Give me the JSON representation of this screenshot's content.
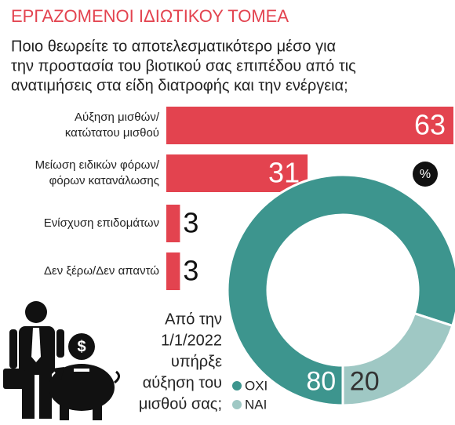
{
  "chart_data": [
    {
      "type": "bar",
      "title": "ΕΡΓΑΖΟΜΕΝΟΙ ΙΔΙΩΤΙΚΟΥ ΤΟΜΕΑ",
      "subtitle": [
        "Ποιο θεωρείτε το αποτελεσματικότερο μέσο για",
        "την προστασία του βιοτικού σας επιπέδου από τις",
        "ανατιμήσεις στα είδη διατροφής και την ενέργεια;"
      ],
      "categories": [
        [
          "Αύξηση μισθών/",
          "κατώτατου μισθού"
        ],
        [
          "Μείωση ειδικών φόρων/",
          "φόρων κατανάλωσης"
        ],
        [
          "Ενίσχυση επιδομάτων"
        ],
        [
          "Δεν ξέρω/Δεν απαντώ"
        ]
      ],
      "values": [
        63,
        31,
        3,
        3
      ],
      "color": "#e3434f",
      "unit_badge": "%"
    },
    {
      "type": "pie",
      "title": [
        "Από την",
        "1/1/2022",
        "υπήρξε",
        "αύξηση του",
        "μισθού σας;"
      ],
      "categories": [
        "ΟΧΙ",
        "ΝΑΙ"
      ],
      "values": [
        80,
        20
      ],
      "colors": [
        "#3d958e",
        "#9fc8c4"
      ]
    }
  ]
}
